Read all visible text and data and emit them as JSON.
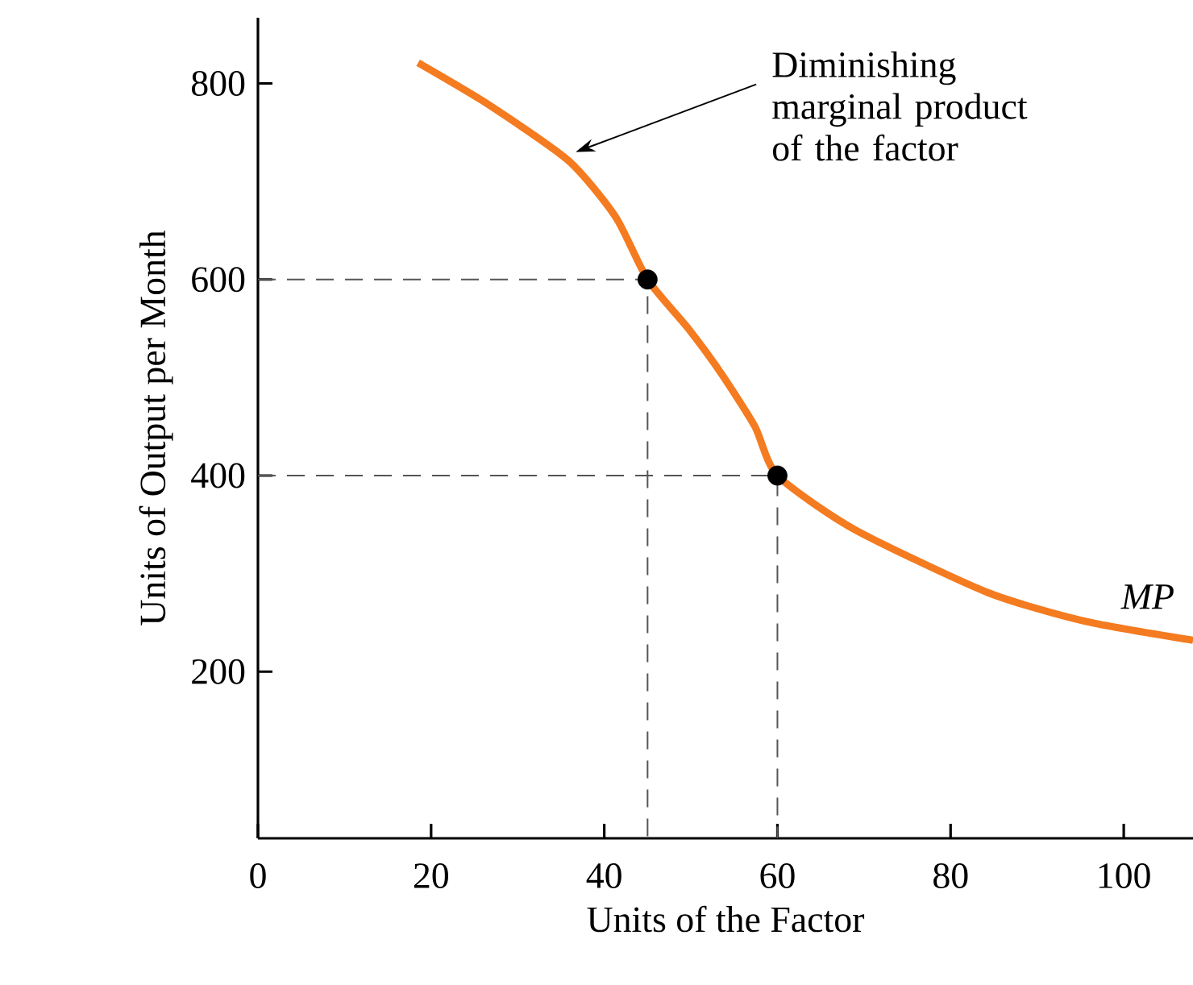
{
  "chart_data": {
    "type": "line",
    "xlabel": "Units of the Factor",
    "ylabel": "Units of Output per Month",
    "xlim": [
      0,
      108
    ],
    "ylim": [
      30,
      867
    ],
    "xticks": [
      0,
      20,
      40,
      60,
      80,
      100
    ],
    "yticks": [
      200,
      400,
      600,
      800
    ],
    "grid": false,
    "series": [
      {
        "name": "MP",
        "color": "#f47b20",
        "x": [
          18.5,
          26.7,
          35.9,
          41.3,
          45,
          49.7,
          53.6,
          57.4,
          60,
          68.9,
          84.2,
          95.7,
          108
        ],
        "values": [
          821,
          778,
          721,
          664,
          600,
          550,
          503,
          450,
          400,
          345,
          281,
          251,
          232
        ]
      },
      {
        "type": "line",
        "line_style": "dashed",
        "color": "#555555",
        "x": [
          0,
          45,
          45
        ],
        "values": [
          600,
          600,
          30
        ]
      },
      {
        "type": "line",
        "line_style": "dashed",
        "color": "#555555",
        "x": [
          0,
          60,
          60
        ],
        "values": [
          400,
          400,
          30
        ]
      },
      {
        "type": "scatter",
        "color": "#000000",
        "x": [
          45,
          60
        ],
        "values": [
          600,
          400
        ]
      }
    ],
    "annotations": [
      {
        "text": "Diminishing marginal product of the factor",
        "x": 36.7,
        "y": 730
      }
    ]
  }
}
